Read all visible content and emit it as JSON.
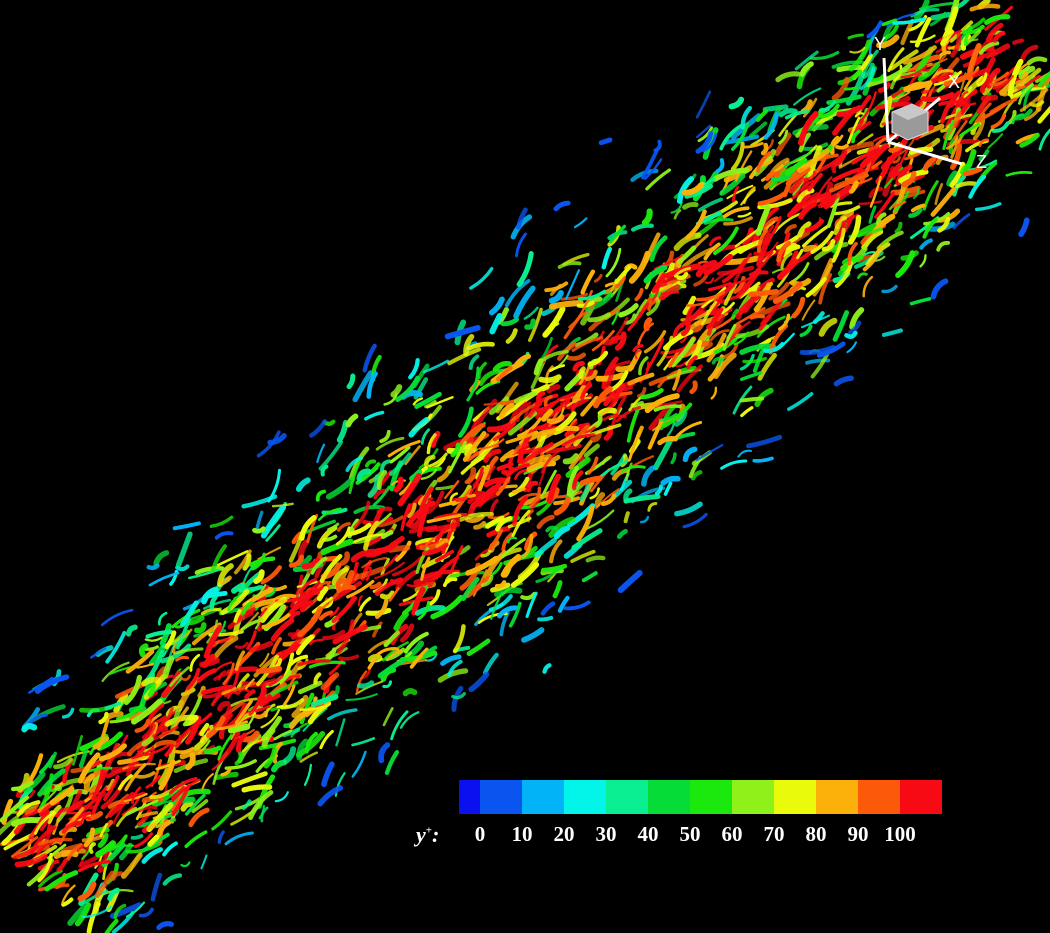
{
  "legend": {
    "variable": "y",
    "superscript": "+",
    "suffix": ":",
    "colors": [
      "#0a10ee",
      "#0a55f0",
      "#02b4f7",
      "#03f4e8",
      "#08ee90",
      "#06dc38",
      "#1be80c",
      "#8ef11a",
      "#e9fb0a",
      "#fbb00a",
      "#fc5a08",
      "#f80a14"
    ],
    "ticks": [
      "0",
      "10",
      "20",
      "30",
      "40",
      "50",
      "60",
      "70",
      "80",
      "90",
      "100"
    ]
  },
  "axes_triad": {
    "y_label": "Y",
    "x_label": "X",
    "z_label": "Z"
  }
}
